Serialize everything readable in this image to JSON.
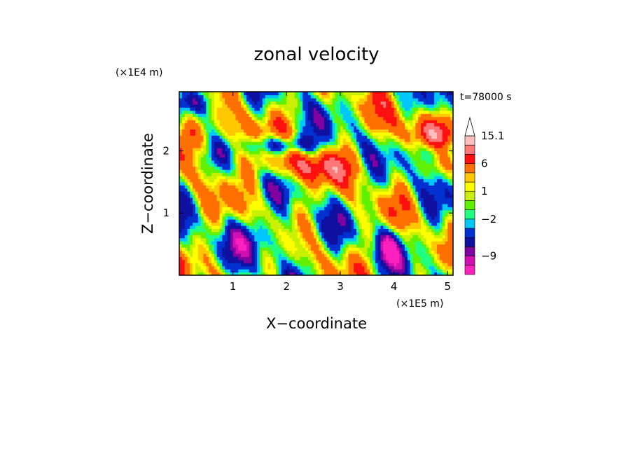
{
  "chart_data": {
    "type": "heatmap",
    "title": "zonal velocity",
    "time_label": "t=78000 s",
    "xlabel": "X−coordinate",
    "ylabel": "Z−coordinate",
    "x_unit": "(×1E5 m)",
    "y_unit": "(×1E4 m)",
    "xlim": [
      0,
      5.1
    ],
    "ylim": [
      0,
      2.95
    ],
    "x_ticks": [
      {
        "value": 1,
        "label": "1"
      },
      {
        "value": 2,
        "label": "2"
      },
      {
        "value": 3,
        "label": "3"
      },
      {
        "value": 4,
        "label": "4"
      },
      {
        "value": 5,
        "label": "5"
      }
    ],
    "y_ticks": [
      {
        "value": 1,
        "label": "1"
      },
      {
        "value": 2,
        "label": "2"
      }
    ],
    "colorbar": {
      "levels": [
        -13,
        -11,
        -9,
        -7,
        -5,
        -3,
        -2,
        -1,
        0,
        1,
        2,
        3,
        6,
        9,
        12,
        15.1
      ],
      "colors": [
        "#ff20c0",
        "#d010b0",
        "#8000a0",
        "#1010a0",
        "#0030d0",
        "#00c8ff",
        "#20ff80",
        "#60f000",
        "#c8f000",
        "#ffff00",
        "#ffc800",
        "#ff7000",
        "#ff1010",
        "#ff7878",
        "#ffc0c0"
      ],
      "extend": "max",
      "labels": [
        {
          "value": -9,
          "label": "−9"
        },
        {
          "value": -2,
          "label": "−2"
        },
        {
          "value": 1,
          "label": "1"
        },
        {
          "value": 6,
          "label": "6"
        },
        {
          "value": 15.1,
          "label": "15.1"
        }
      ]
    }
  }
}
